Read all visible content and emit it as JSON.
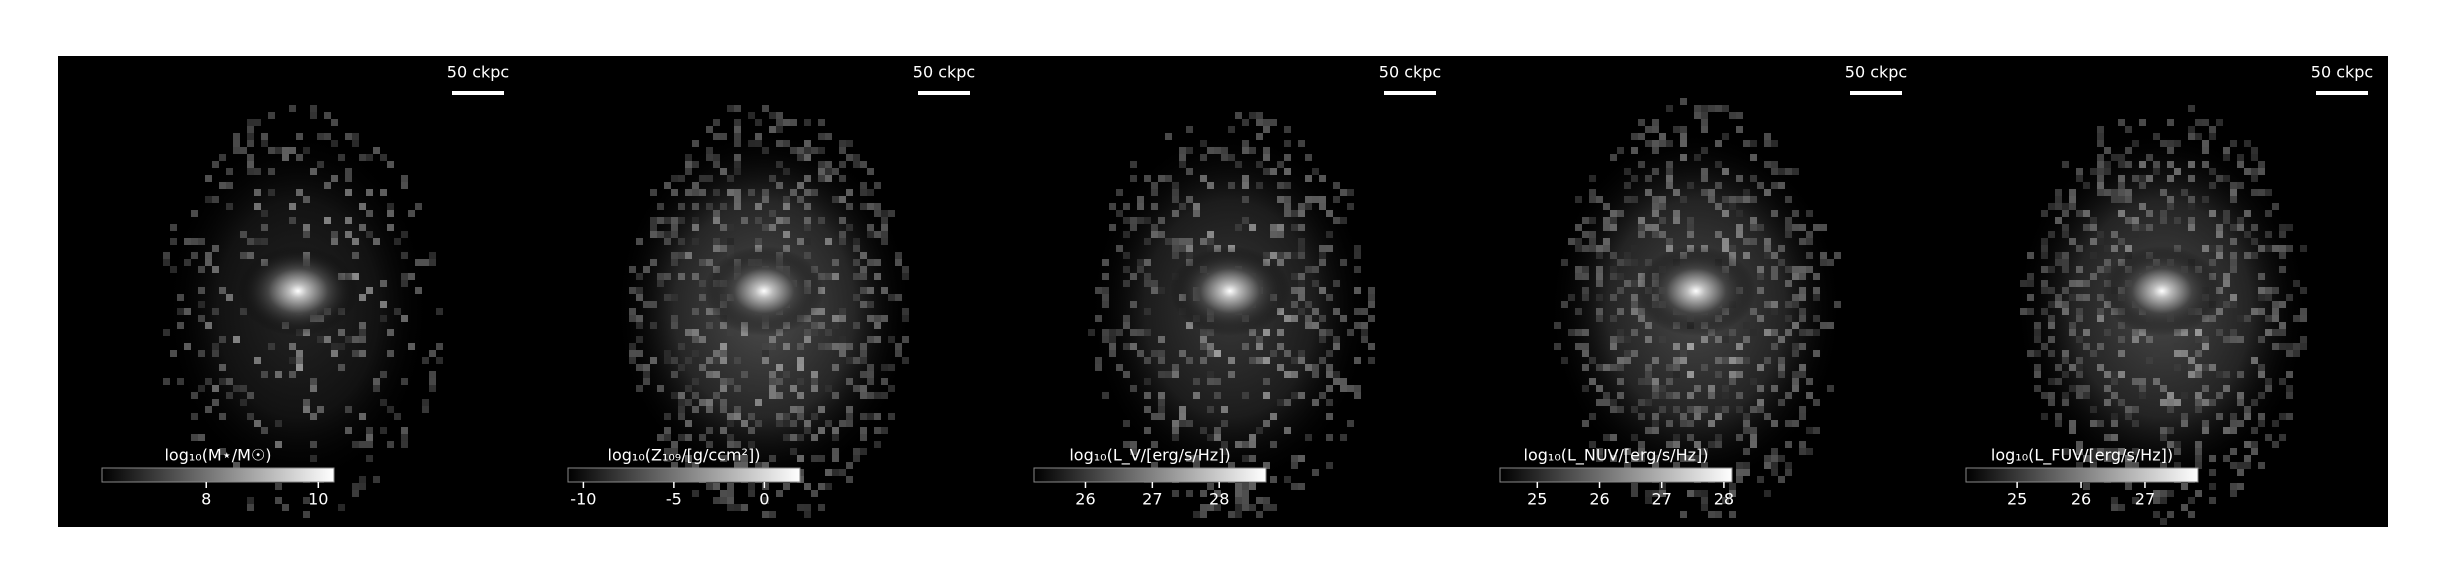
{
  "panels": [
    {
      "scale_label": "50 ckpc",
      "colorbar": {
        "label": "log₁₀(M⋆/M☉)",
        "lim": [
          6.14,
          10.28
        ],
        "ticks": [
          8,
          10
        ]
      }
    },
    {
      "scale_label": "50 ckpc",
      "colorbar": {
        "label": "log₁₀(Z₁₀₉/[g/ccm²])",
        "lim": [
          -10.85,
          1.97
        ],
        "ticks": [
          -10,
          -5,
          0
        ]
      }
    },
    {
      "scale_label": "50 ckpc",
      "colorbar": {
        "label": "log₁₀(L_V/[erg/s/Hz])",
        "lim": [
          25.23,
          28.7
        ],
        "ticks": [
          26,
          27,
          28
        ]
      }
    },
    {
      "scale_label": "50 ckpc",
      "colorbar": {
        "label": "log₁₀(L_NUV/[erg/s/Hz])",
        "lim": [
          24.4,
          28.13
        ],
        "ticks": [
          25,
          26,
          27,
          28
        ]
      }
    },
    {
      "scale_label": "50 ckpc",
      "colorbar": {
        "label": "log₁₀(L_FUV/[erg/s/Hz])",
        "lim": [
          24.2,
          27.83
        ],
        "ticks": [
          25,
          26,
          27
        ]
      }
    }
  ]
}
